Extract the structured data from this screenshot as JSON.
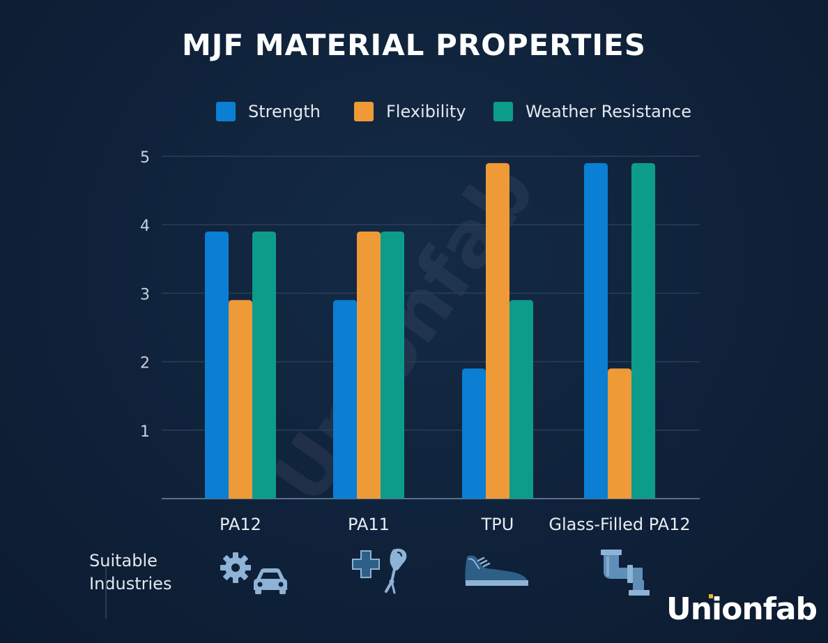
{
  "title": "MJF MATERIAL PROPERTIES",
  "colors": {
    "strength": "#0a7fd3",
    "flexibility": "#ee9a36",
    "weather": "#0d9c8a",
    "icon": "#8fb3d6"
  },
  "legend": [
    {
      "label": "Strength",
      "color": "#0a7fd3"
    },
    {
      "label": "Flexibility",
      "color": "#ee9a36"
    },
    {
      "label": "Weather Resistance",
      "color": "#0d9c8a"
    }
  ],
  "chart_data": {
    "type": "bar",
    "title": "MJF MATERIAL PROPERTIES",
    "categories": [
      "PA12",
      "PA11",
      "TPU",
      "Glass-Filled PA12"
    ],
    "series": [
      {
        "name": "Strength",
        "values": [
          4,
          3,
          2,
          5
        ]
      },
      {
        "name": "Flexibility",
        "values": [
          3,
          4,
          5,
          2
        ]
      },
      {
        "name": "Weather Resistance",
        "values": [
          4,
          4,
          3,
          5
        ]
      }
    ],
    "yticks": [
      1,
      2,
      3,
      4,
      5
    ],
    "ylim": [
      0,
      5
    ],
    "xlabel": "",
    "ylabel": "",
    "grid": true,
    "legend_position": "top-right"
  },
  "industries": {
    "label": "Suitable Industries",
    "icons": [
      {
        "category": "PA12",
        "names": [
          "gear-icon",
          "car-icon"
        ]
      },
      {
        "category": "PA11",
        "names": [
          "medical-cross-icon",
          "prosthetic-arm-icon"
        ]
      },
      {
        "category": "TPU",
        "names": [
          "sneaker-icon"
        ]
      },
      {
        "category": "Glass-Filled PA12",
        "names": [
          "pipe-icon"
        ]
      }
    ]
  },
  "watermark": "Unionfab",
  "brand": "Unionfab"
}
